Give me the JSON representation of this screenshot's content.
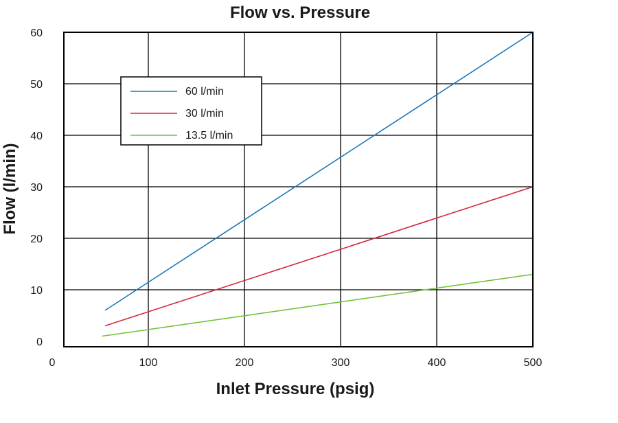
{
  "chart_data": {
    "type": "line",
    "title": "Flow vs. Pressure",
    "xlabel": "Inlet Pressure (psig)",
    "ylabel": "Flow (l/min)",
    "xlim": [
      0,
      500
    ],
    "ylim": [
      0,
      60
    ],
    "x_ticks": [
      "0",
      "100",
      "200",
      "300",
      "400",
      "500"
    ],
    "y_ticks": [
      "0",
      "10",
      "20",
      "30",
      "40",
      "50",
      "60"
    ],
    "grid": true,
    "legend_position": "upper-left",
    "series": [
      {
        "name": "60 l/min",
        "color": "#1f78b4",
        "x": [
          55,
          500
        ],
        "y": [
          6,
          60
        ]
      },
      {
        "name": "30 l/min",
        "color": "#d6263a",
        "x": [
          55,
          500
        ],
        "y": [
          3,
          30
        ]
      },
      {
        "name": "13.5 l/min",
        "color": "#72c23c",
        "x": [
          52,
          500
        ],
        "y": [
          1,
          13
        ]
      }
    ]
  }
}
